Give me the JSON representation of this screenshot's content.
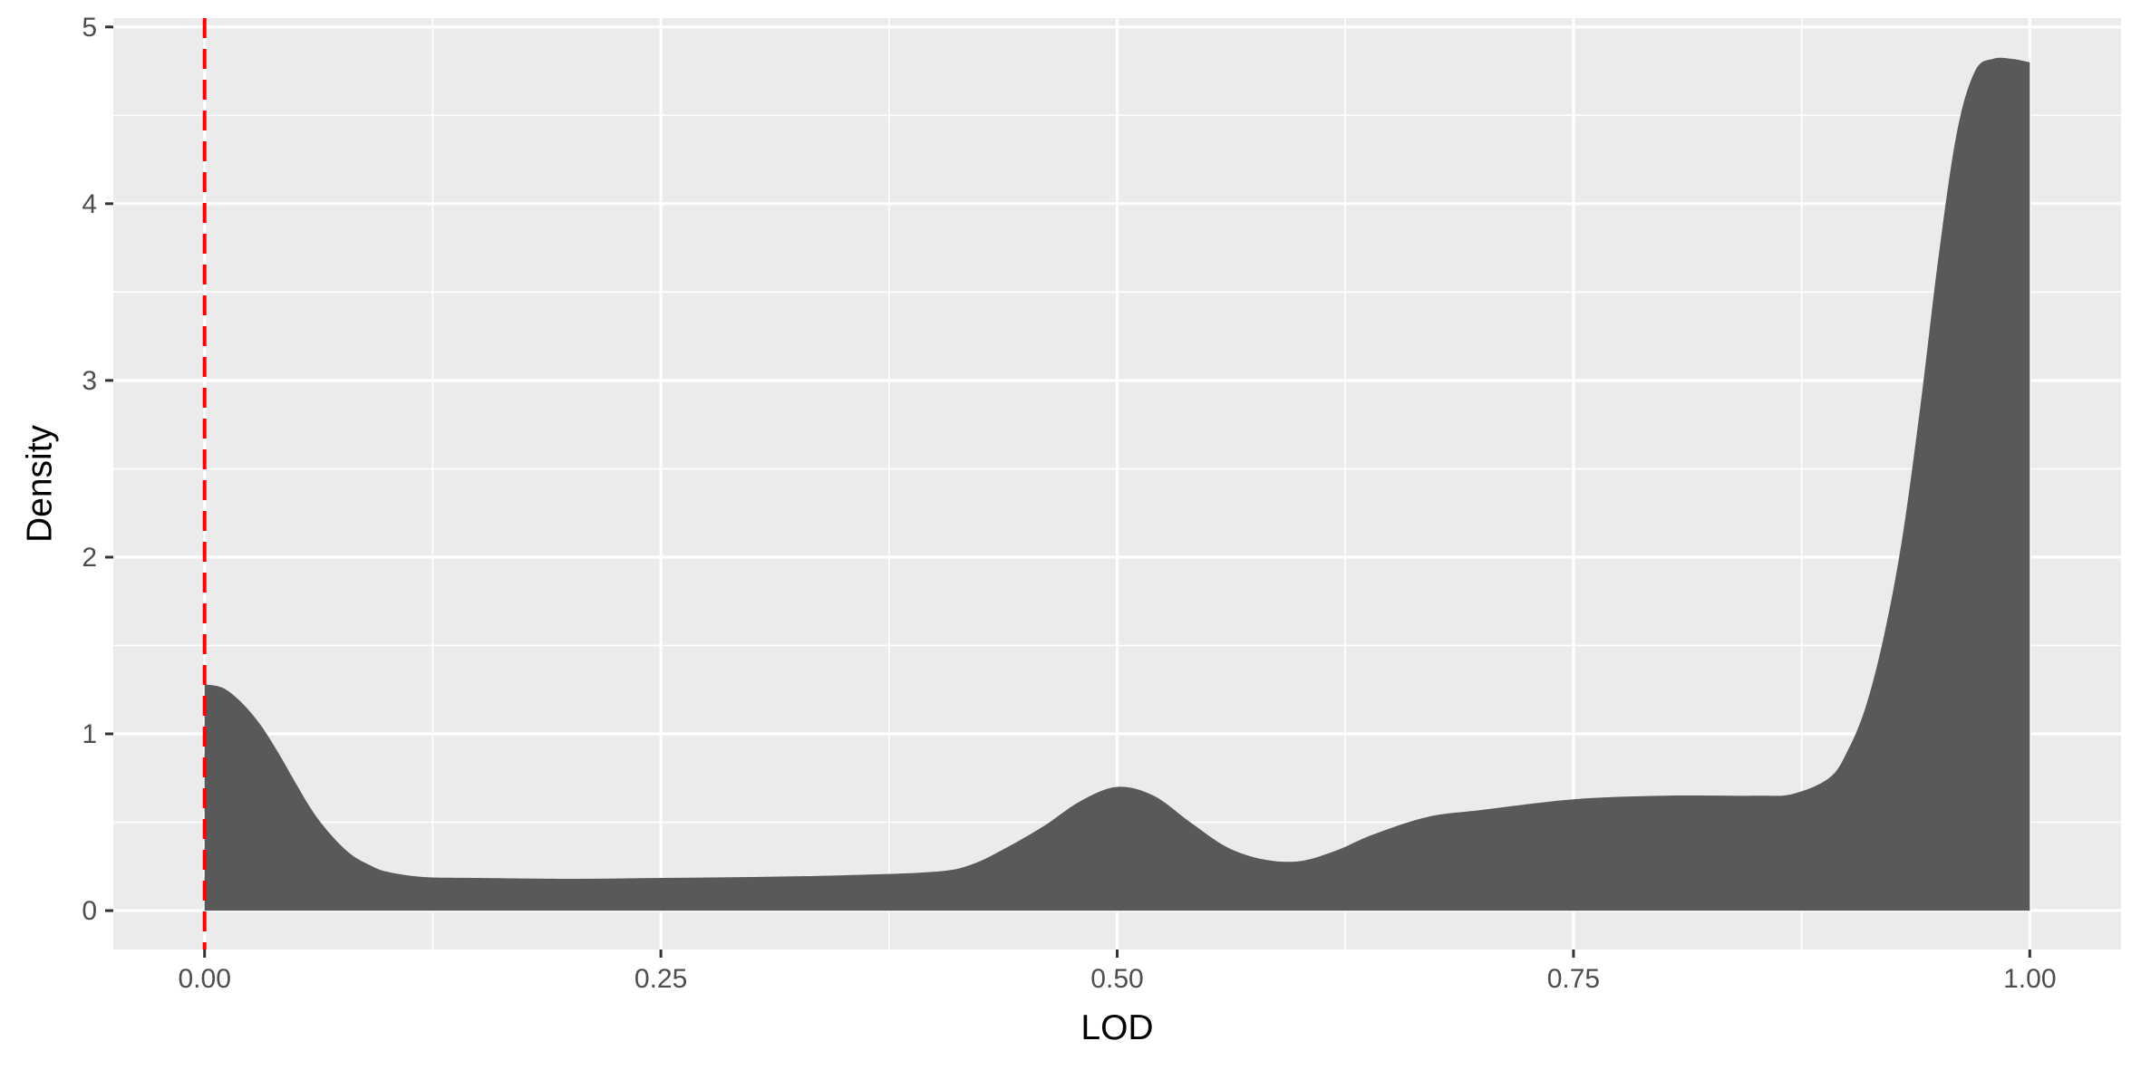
{
  "chart_data": {
    "type": "area",
    "title": "",
    "xlabel": "LOD",
    "ylabel": "Density",
    "xlim": [
      -0.05,
      1.05
    ],
    "ylim": [
      -0.22,
      5.05
    ],
    "x_ticks": [
      0.0,
      0.25,
      0.5,
      0.75,
      1.0
    ],
    "x_tick_labels": [
      "0.00",
      "0.25",
      "0.50",
      "0.75",
      "1.00"
    ],
    "y_ticks": [
      0,
      1,
      2,
      3,
      4,
      5
    ],
    "y_tick_labels": [
      "0",
      "1",
      "2",
      "3",
      "4",
      "5"
    ],
    "grid": true,
    "legend": "none",
    "colors": {
      "panel": "#ebebeb",
      "grid": "#ffffff",
      "fill": "#595959",
      "reference_line": "#ff0000"
    },
    "reference_line": {
      "x": 0.0,
      "style": "dashed"
    },
    "series": [
      {
        "x": [
          0.0,
          0.01,
          0.02,
          0.03,
          0.04,
          0.05,
          0.06,
          0.07,
          0.08,
          0.09,
          0.1,
          0.12,
          0.15,
          0.2,
          0.25,
          0.3,
          0.35,
          0.4,
          0.42,
          0.44,
          0.46,
          0.48,
          0.5,
          0.52,
          0.54,
          0.56,
          0.58,
          0.6,
          0.62,
          0.64,
          0.67,
          0.7,
          0.75,
          0.8,
          0.85,
          0.87,
          0.89,
          0.9,
          0.91,
          0.92,
          0.93,
          0.94,
          0.95,
          0.96,
          0.97,
          0.98,
          0.99,
          1.0
        ],
        "values": [
          1.28,
          1.26,
          1.18,
          1.06,
          0.9,
          0.72,
          0.55,
          0.42,
          0.32,
          0.26,
          0.22,
          0.19,
          0.185,
          0.18,
          0.185,
          0.19,
          0.2,
          0.22,
          0.26,
          0.36,
          0.48,
          0.62,
          0.7,
          0.65,
          0.5,
          0.36,
          0.29,
          0.28,
          0.34,
          0.43,
          0.53,
          0.57,
          0.63,
          0.65,
          0.65,
          0.66,
          0.75,
          0.9,
          1.15,
          1.55,
          2.1,
          2.85,
          3.7,
          4.4,
          4.75,
          4.82,
          4.82,
          4.8
        ]
      }
    ]
  }
}
